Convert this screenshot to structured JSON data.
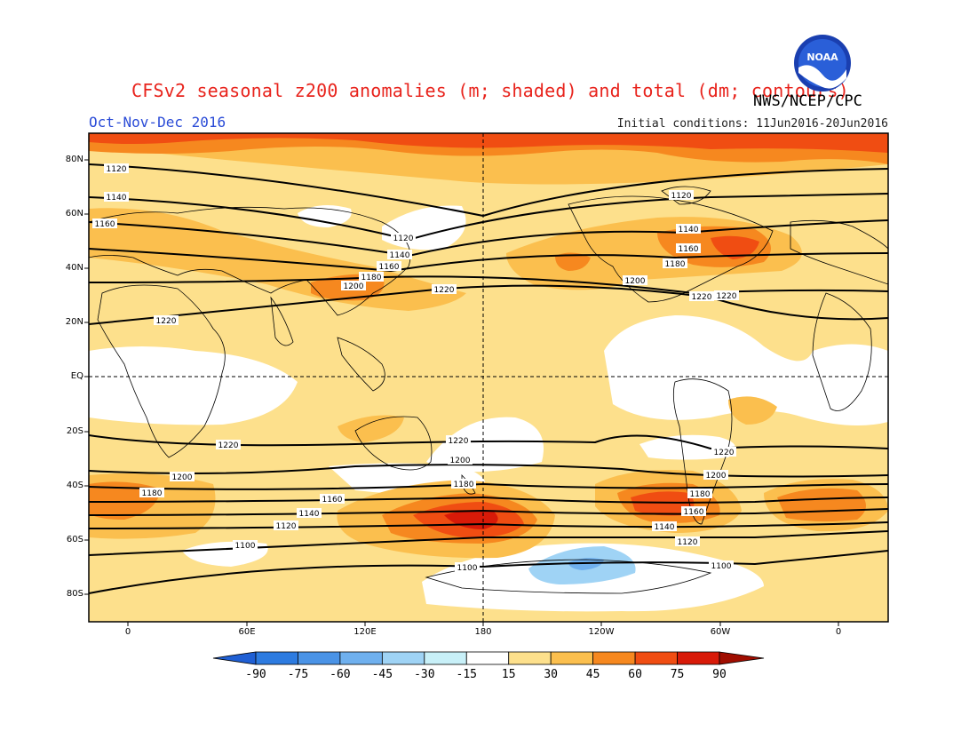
{
  "title": "CFSv2 seasonal z200 anomalies (m; shaded) and total (dm; contours)",
  "agency": "NWS/NCEP/CPC",
  "logo_text": "NOAA",
  "season": "Oct-Nov-Dec 2016",
  "initial_conditions": "Initial conditions: 11Jun2016-20Jun2016",
  "map": {
    "lat_labels": [
      "80N",
      "60N",
      "40N",
      "20N",
      "EQ",
      "20S",
      "40S",
      "60S",
      "80S"
    ],
    "lon_labels": [
      "0",
      "60E",
      "120E",
      "180",
      "120W",
      "60W",
      "0"
    ],
    "contour_labels": [
      "1120",
      "1140",
      "1160",
      "1120",
      "1140",
      "1160",
      "1180",
      "1200",
      "1220",
      "1120",
      "1140",
      "1160",
      "1180",
      "1200",
      "1220",
      "1220",
      "1220",
      "1220",
      "1200",
      "1180",
      "1160",
      "1140",
      "1120",
      "1100",
      "1100",
      "1220",
      "1200",
      "1180",
      "1160",
      "1140",
      "1120",
      "1100",
      "1180",
      "1200",
      "1220"
    ]
  },
  "colorbar": {
    "labels": [
      "-90",
      "-75",
      "-60",
      "-45",
      "-30",
      "-15",
      "15",
      "30",
      "45",
      "60",
      "75",
      "90"
    ],
    "colors": [
      "#1f5fd4",
      "#2d7be0",
      "#4a93e6",
      "#6fb0ee",
      "#9fd3f5",
      "#c8f0f8",
      "#ffffff",
      "#fde08c",
      "#fbbf4e",
      "#f6881f",
      "#f04d12",
      "#d81a08",
      "#a00d00"
    ]
  },
  "colors": {
    "title": "#e8231c",
    "season": "#2a4bd7",
    "ocean_background": "#fde08c"
  }
}
